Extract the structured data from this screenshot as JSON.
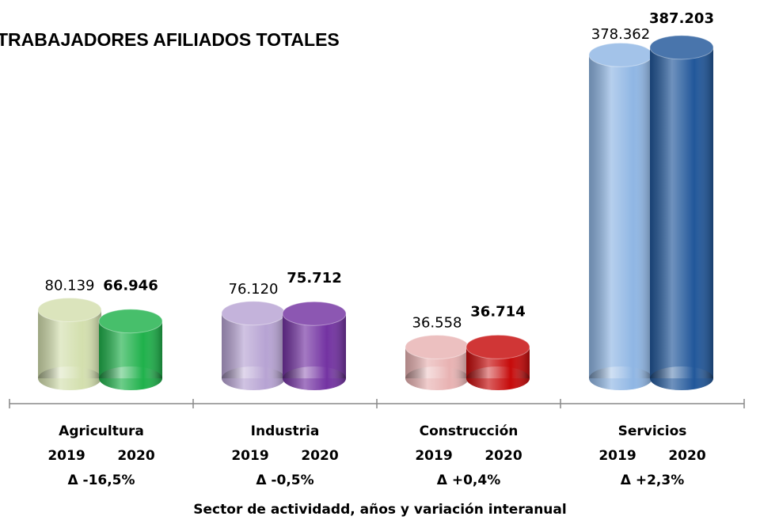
{
  "chart_data": {
    "type": "bar",
    "title": "TRABAJADORES AFILIADOS TOTALES",
    "x_label": "Sector de actividadd, años y variación interanual",
    "categories": [
      "Agricultura",
      "Industria",
      "Construcción",
      "Servicios"
    ],
    "variation_labels": [
      "Δ -16,5%",
      "Δ -0,5%",
      "Δ +0,4%",
      "Δ +2,3%"
    ],
    "series": [
      {
        "name": "2019",
        "colors": [
          "#d3dfae",
          "#b7a3d3",
          "#e8b2b2",
          "#8fb6e4"
        ],
        "values": [
          80139,
          76120,
          36558,
          378362
        ],
        "value_labels": [
          "80.139",
          "76.120",
          "36.558",
          "378.362"
        ]
      },
      {
        "name": "2020",
        "colors": [
          "#1fb14b",
          "#7332a2",
          "#c60a0a",
          "#21579a"
        ],
        "values": [
          66946,
          75712,
          36714,
          387203
        ],
        "value_labels": [
          "66.946",
          "75.712",
          "36.714",
          "387.203"
        ]
      }
    ]
  }
}
